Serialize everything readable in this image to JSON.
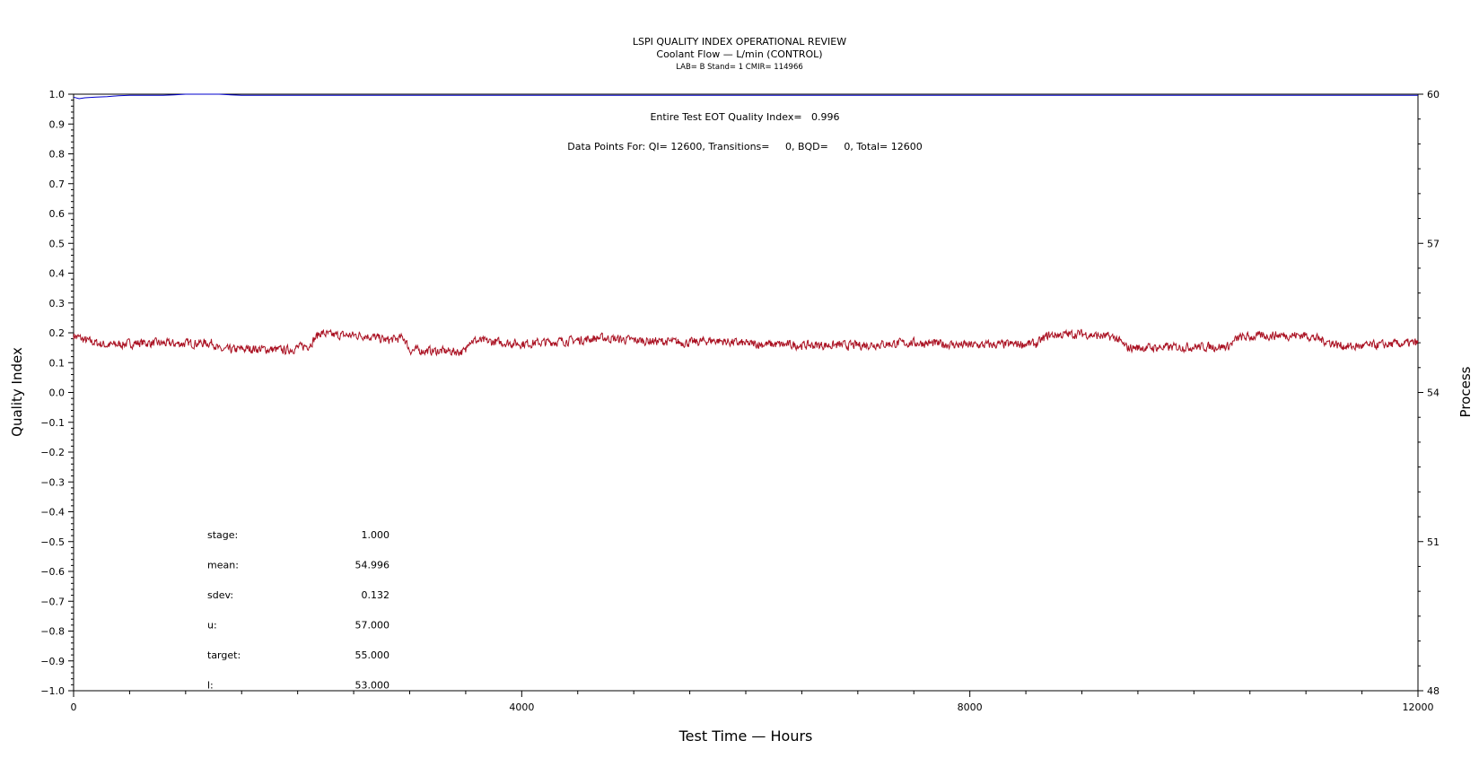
{
  "chart_data": {
    "type": "line",
    "title": "LSPI QUALITY INDEX OPERATIONAL REVIEW",
    "subtitle": "Coolant Flow — L/min (CONTROL)",
    "subtitle2": "LAB= B Stand= 1 CMIR= 114966",
    "xlabel": "Test Time — Hours",
    "ylabel_left": "Quality Index",
    "ylabel_right": "Process",
    "xlim": [
      0,
      12000
    ],
    "ylim_left": [
      -1.0,
      1.0
    ],
    "ylim_right": [
      48,
      60
    ],
    "x_ticks": [
      "0",
      "4000",
      "8000",
      "12000"
    ],
    "y_left_ticks": [
      "1.0",
      "0.9",
      "0.8",
      "0.7",
      "0.6",
      "0.5",
      "0.4",
      "0.3",
      "0.2",
      "0.1",
      "0.0",
      "−0.1",
      "−0.2",
      "−0.3",
      "−0.4",
      "−0.5",
      "−0.6",
      "−0.7",
      "−0.8",
      "−0.9",
      "−1.0"
    ],
    "y_right_ticks": [
      "60",
      "57",
      "54",
      "51",
      "48"
    ],
    "annotations": {
      "quality_index": "Entire Test EOT Quality Index=   0.996",
      "data_points": "Data Points For: QI= 12600, Transitions=     0, BQD=     0, Total= 12600"
    },
    "stats": [
      {
        "label": "stage:",
        "value": "1.000"
      },
      {
        "label": "mean:",
        "value": "54.996"
      },
      {
        "label": "sdev:",
        "value": "0.132"
      },
      {
        "label": "u:",
        "value": "57.000"
      },
      {
        "label": "target:",
        "value": "55.000"
      },
      {
        "label": "l:",
        "value": "53.000"
      }
    ],
    "series": [
      {
        "axis": "left",
        "color": "#0000cc",
        "x": [
          0,
          50,
          100,
          200,
          300,
          400,
          500,
          800,
          900,
          1000,
          1300,
          1400,
          1500,
          2000,
          4000,
          6000,
          8000,
          10000,
          12000
        ],
        "values": [
          0.99,
          0.985,
          0.988,
          0.99,
          0.992,
          0.995,
          0.996,
          0.996,
          0.998,
          1.0,
          1.0,
          0.998,
          0.996,
          0.996,
          0.996,
          0.996,
          0.996,
          0.996,
          0.996
        ]
      },
      {
        "axis": "right",
        "color": "#aa1122",
        "x": [
          0,
          100,
          300,
          600,
          900,
          1250,
          1300,
          1600,
          1900,
          2100,
          2200,
          2300,
          2600,
          2800,
          2950,
          3000,
          3300,
          3500,
          3520,
          4000,
          4500,
          4700,
          5000,
          5500,
          5700,
          6000,
          6500,
          7000,
          7500,
          8000,
          8600,
          8700,
          9000,
          9300,
          9400,
          9600,
          10000,
          10300,
          10400,
          10700,
          11000,
          11300,
          11400,
          12000
        ],
        "values": [
          55.15,
          55.05,
          54.95,
          55.0,
          54.98,
          55.0,
          54.85,
          54.88,
          54.85,
          54.95,
          55.2,
          55.15,
          55.15,
          55.05,
          55.1,
          54.85,
          54.83,
          54.82,
          55.05,
          54.98,
          55.05,
          55.1,
          55.05,
          55.0,
          55.05,
          54.98,
          54.95,
          54.95,
          55.0,
          54.95,
          54.98,
          55.15,
          55.18,
          55.1,
          54.9,
          54.9,
          54.92,
          54.92,
          55.1,
          55.15,
          55.15,
          54.95,
          54.92,
          55.0
        ]
      }
    ]
  }
}
